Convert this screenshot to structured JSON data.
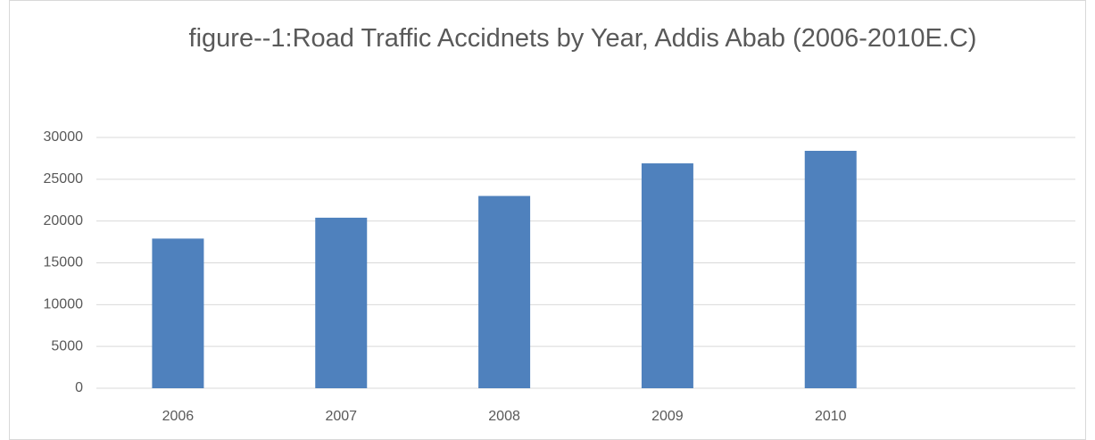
{
  "chart_data": {
    "type": "bar",
    "title": "figure--1:Road Traffic Accidnets by Year, Addis Abab (2006-2010E.C)",
    "categories": [
      "2006",
      "2007",
      "2008",
      "2009",
      "2010",
      null
    ],
    "values": [
      17900,
      20400,
      23000,
      26900,
      28400,
      null
    ],
    "color": "#4f81bd",
    "ylim": [
      0,
      30000
    ],
    "yticks": [
      0,
      5000,
      10000,
      15000,
      20000,
      25000,
      30000
    ],
    "grid": true
  }
}
